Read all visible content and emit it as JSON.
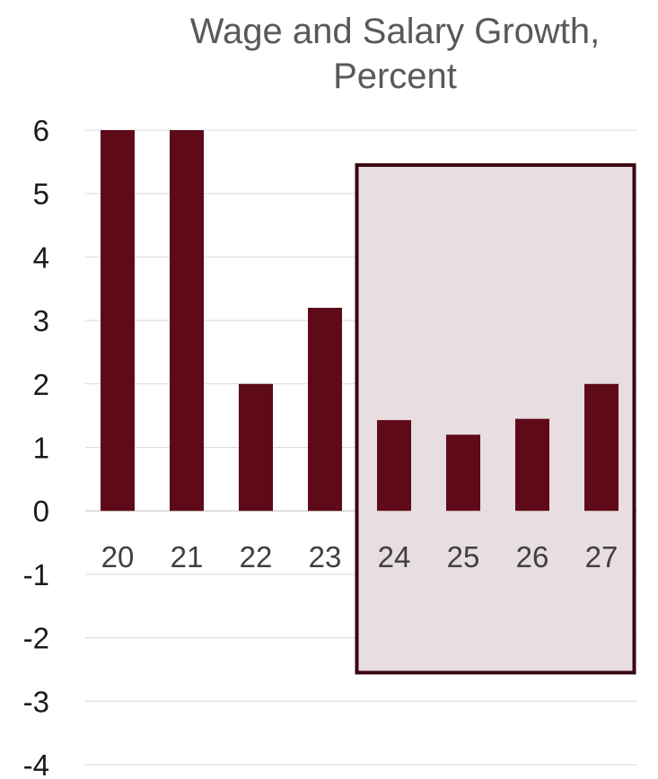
{
  "chart_data": {
    "type": "bar",
    "title_lines": [
      "Wage and Salary Growth,",
      "Percent"
    ],
    "categories": [
      "20",
      "21",
      "22",
      "23",
      "24",
      "25",
      "26",
      "27"
    ],
    "series": [
      {
        "values": [
          6.0,
          6.0,
          2.0,
          3.2,
          1.43,
          1.2,
          1.45,
          2.0
        ]
      }
    ],
    "ylim": [
      -4,
      6
    ],
    "yticks": [
      "6",
      "5",
      "4",
      "3",
      "2",
      "1",
      "0",
      "-1",
      "-2",
      "-3",
      "-4"
    ],
    "grid": true,
    "bar_color": "#5e0a18",
    "highlight": {
      "from_category": "24",
      "to_category": "27",
      "fill": "#e8dde0",
      "border": "#3a0610"
    }
  }
}
